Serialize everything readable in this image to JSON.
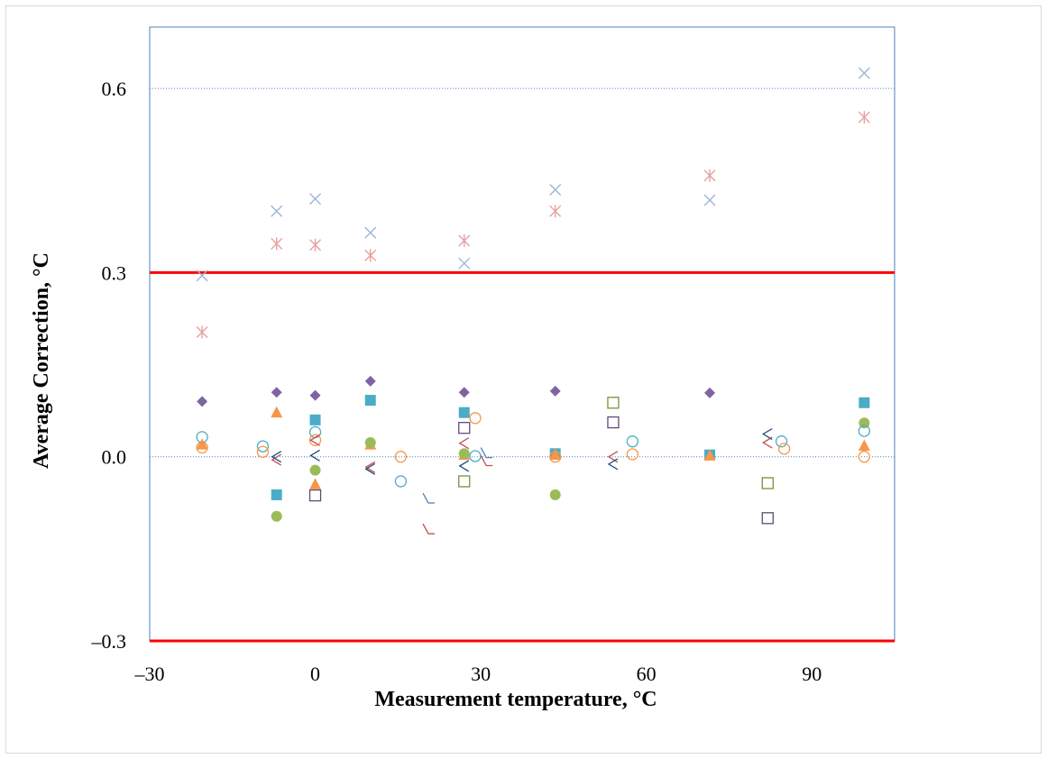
{
  "chart_data": {
    "type": "scatter",
    "title": "",
    "xlabel": "Measurement temperature, °C",
    "ylabel": "Average Correction, °C",
    "xlim": [
      -30,
      105
    ],
    "ylim": [
      -0.3,
      0.7
    ],
    "x_ticks": [
      -30,
      0,
      30,
      60,
      90
    ],
    "x_tick_labels": [
      "–30",
      "0",
      "30",
      "60",
      "90"
    ],
    "y_ticks": [
      -0.3,
      0.0,
      0.3,
      0.6
    ],
    "y_tick_labels": [
      "–0.3",
      "0.0",
      "0.3",
      "0.6"
    ],
    "grid": "dotted lines at y = 0.0 and y = 0.6",
    "legend": "none",
    "limit_lines": {
      "values": [
        0.3,
        -0.3
      ],
      "color": "#ff0000"
    },
    "series": [
      {
        "marker": "cross",
        "color": "#9db4d9",
        "points": [
          [
            -20.5,
            0.295
          ],
          [
            -7,
            0.4
          ],
          [
            0,
            0.42
          ],
          [
            10,
            0.365
          ],
          [
            27,
            0.315
          ],
          [
            43.5,
            0.435
          ],
          [
            71.5,
            0.418
          ],
          [
            99.5,
            0.625
          ]
        ]
      },
      {
        "marker": "asterisk",
        "color": "#e8a0a0",
        "points": [
          [
            -20.5,
            0.203
          ],
          [
            -7,
            0.347
          ],
          [
            0,
            0.345
          ],
          [
            10,
            0.328
          ],
          [
            27,
            0.352
          ],
          [
            43.5,
            0.4
          ],
          [
            71.5,
            0.458
          ],
          [
            99.5,
            0.553
          ]
        ]
      },
      {
        "marker": "diamond",
        "color": "#8064a2",
        "points": [
          [
            -20.5,
            0.09
          ],
          [
            -7,
            0.105
          ],
          [
            0,
            0.1
          ],
          [
            10,
            0.123
          ],
          [
            27,
            0.105
          ],
          [
            43.5,
            0.107
          ],
          [
            71.5,
            0.104
          ],
          [
            99.5,
            0.055
          ]
        ]
      },
      {
        "marker": "square-filled",
        "color": "#4bacc6",
        "points": [
          [
            -7,
            -0.062
          ],
          [
            0,
            0.06
          ],
          [
            10,
            0.092
          ],
          [
            27,
            0.072
          ],
          [
            43.5,
            0.005
          ],
          [
            71.5,
            0.003
          ],
          [
            99.5,
            0.088
          ]
        ]
      },
      {
        "marker": "triangle",
        "color": "#f79646",
        "points": [
          [
            -20.5,
            0.02
          ],
          [
            -7,
            0.072
          ],
          [
            0,
            -0.045
          ],
          [
            10,
            0.02
          ],
          [
            27,
            0.003
          ],
          [
            43.5,
            0.003
          ],
          [
            71.5,
            0.002
          ],
          [
            99.5,
            0.018
          ]
        ]
      },
      {
        "marker": "circle-filled",
        "color": "#9bbb59",
        "points": [
          [
            -7,
            -0.097
          ],
          [
            0,
            -0.022
          ],
          [
            10,
            0.023
          ],
          [
            27,
            0.005
          ],
          [
            43.5,
            -0.062
          ],
          [
            99.5,
            0.055
          ]
        ]
      },
      {
        "marker": "circle-open",
        "color": "#4bacc6",
        "points": [
          [
            -20.5,
            0.032
          ],
          [
            -9.5,
            0.017
          ],
          [
            0,
            0.04
          ],
          [
            15.5,
            -0.04
          ],
          [
            29,
            0.001
          ],
          [
            57.5,
            0.025
          ],
          [
            84.5,
            0.025
          ],
          [
            99.5,
            0.042
          ]
        ]
      },
      {
        "marker": "circle-open",
        "color": "#f79646",
        "points": [
          [
            -20.5,
            0.015
          ],
          [
            -9.5,
            0.008
          ],
          [
            0,
            0.027
          ],
          [
            15.5,
            0.0
          ],
          [
            29,
            0.063
          ],
          [
            43.5,
            0.0
          ],
          [
            57.5,
            0.004
          ],
          [
            85,
            0.013
          ],
          [
            99.5,
            0.0
          ]
        ]
      },
      {
        "marker": "square-open",
        "color": "#604a7b",
        "points": [
          [
            0,
            -0.063
          ],
          [
            27,
            0.047
          ],
          [
            54,
            0.056
          ],
          [
            82,
            -0.1
          ]
        ]
      },
      {
        "marker": "square-open",
        "color": "#77933c",
        "points": [
          [
            27,
            -0.04
          ],
          [
            54,
            0.088
          ],
          [
            82,
            -0.043
          ]
        ]
      },
      {
        "marker": "chevron-left",
        "color": "#c0504d",
        "points": [
          [
            -7,
            -0.005
          ],
          [
            0,
            0.027
          ],
          [
            10,
            -0.017
          ],
          [
            27,
            0.022
          ],
          [
            54,
            0.0
          ],
          [
            82,
            0.023
          ]
        ]
      },
      {
        "marker": "chevron-left",
        "color": "#1f497d",
        "points": [
          [
            -7,
            0.0
          ],
          [
            0,
            0.002
          ],
          [
            10,
            -0.02
          ],
          [
            27,
            -0.015
          ],
          [
            54,
            -0.012
          ],
          [
            82,
            0.037
          ]
        ]
      },
      {
        "marker": "angle",
        "color": "#4f81bd",
        "points": [
          [
            20.5,
            -0.068
          ],
          [
            31,
            0.006
          ]
        ]
      },
      {
        "marker": "angle",
        "color": "#c0504d",
        "points": [
          [
            20.5,
            -0.118
          ],
          [
            31,
            -0.007
          ]
        ]
      }
    ]
  }
}
